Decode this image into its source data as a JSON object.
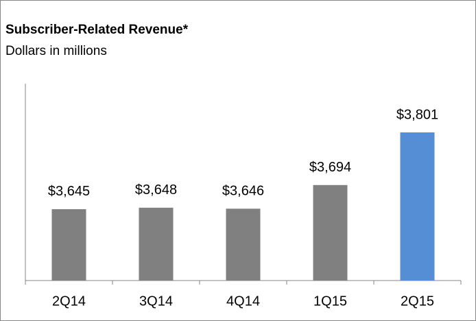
{
  "chart_data": {
    "type": "bar",
    "title": "Subscriber-Related Revenue*",
    "subtitle": "Dollars in millions",
    "categories": [
      "2Q14",
      "3Q14",
      "4Q14",
      "1Q15",
      "2Q15"
    ],
    "values": [
      3645,
      3648,
      3646,
      3694,
      3801
    ],
    "value_labels": [
      "$3,645",
      "$3,648",
      "$3,646",
      "$3,694",
      "$3,801"
    ],
    "colors": [
      "#808080",
      "#808080",
      "#808080",
      "#808080",
      "#558ed5"
    ],
    "ylim": [
      3500,
      3900
    ]
  }
}
